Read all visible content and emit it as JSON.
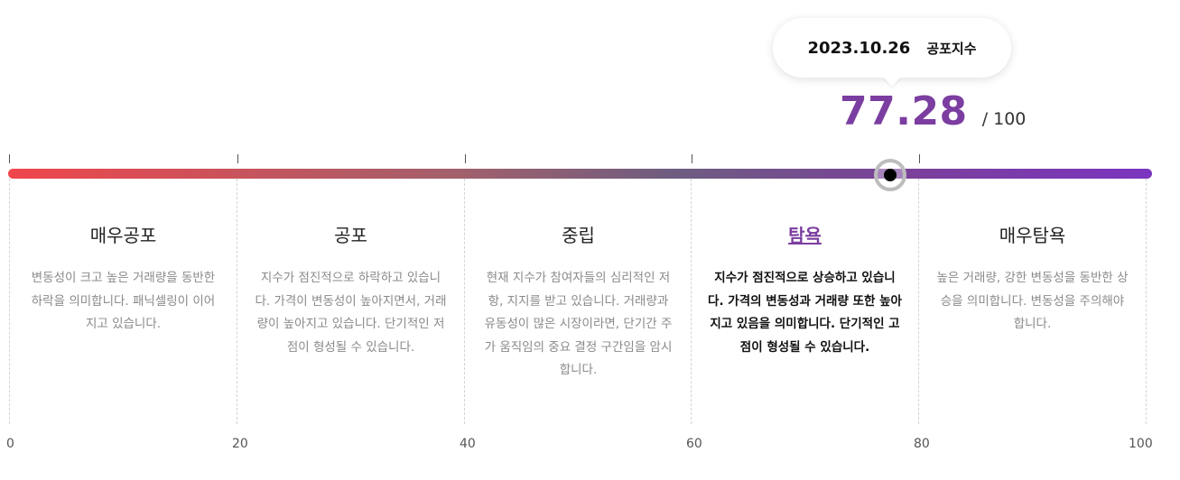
{
  "tooltip": {
    "date": "2023.10.26",
    "label": "공포지수"
  },
  "index": {
    "value": "77.28",
    "max": "/ 100",
    "level": 77.28,
    "color": "#7b3ea0"
  },
  "zones": [
    {
      "title": "매우공포",
      "desc": "변동성이 크고 높은 거래량을 동반한 하락을 의미합니다. 패닉셀링이 이어지고 있습니다."
    },
    {
      "title": "공포",
      "desc": "지수가 점진적으로 하락하고 있습니다. 가격이 변동성이 높아지면서, 거래량이 높아지고 있습니다. 단기적인 저점이 형성될 수 있습니다."
    },
    {
      "title": "중립",
      "desc": "현재 지수가 참여자들의 심리적인 저항, 지지를 받고 있습니다. 거래량과 유동성이 많은 시장이라면, 단기간 주가 움직임의 중요 결정 구간임을 암시합니다."
    },
    {
      "title": "탐욕",
      "desc": "지수가 점진적으로 상승하고 있습니다. 가격의 변동성과 거래량 또한 높아지고 있음을 의미합니다. 단기적인 고점이 형성될 수 있습니다.",
      "active": true
    },
    {
      "title": "매우탐욕",
      "desc": "높은 거래량, 강한 변동성을 동반한 상승을 의미합니다. 변동성을 주의해야 합니다."
    }
  ],
  "scale": [
    "0",
    "20",
    "40",
    "60",
    "80",
    "100"
  ],
  "colors": {
    "fear": "#f0464c",
    "greed": "#7b35c0"
  }
}
